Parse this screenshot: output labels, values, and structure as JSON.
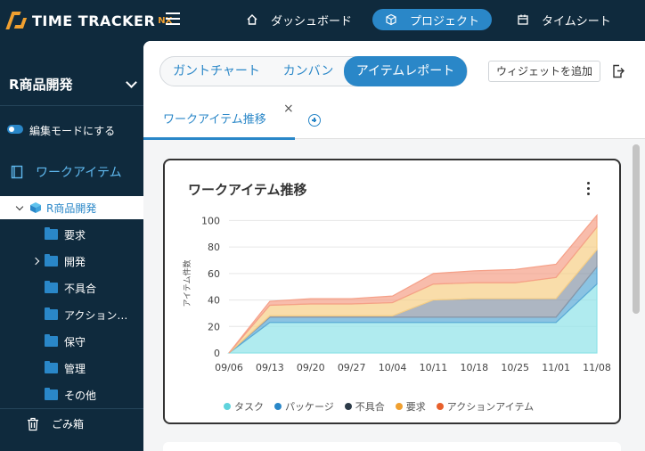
{
  "app": {
    "logo_text": "TIME TRACKER",
    "logo_suffix": "NX"
  },
  "topnav": {
    "items": [
      {
        "label": "ダッシュボード",
        "icon": "home-icon"
      },
      {
        "label": "プロジェクト",
        "icon": "cube-icon",
        "active": true
      },
      {
        "label": "タイムシート",
        "icon": "calendar-icon"
      }
    ]
  },
  "sidebar": {
    "project_name": "R商品開発",
    "edit_mode_label": "編集モードにする",
    "section_label": "ワークアイテム",
    "tree_root": "R商品開発",
    "folders": [
      {
        "label": "要求"
      },
      {
        "label": "開発",
        "expandable": true
      },
      {
        "label": "不具合"
      },
      {
        "label": "アクション…"
      },
      {
        "label": "保守"
      },
      {
        "label": "管理"
      },
      {
        "label": "その他"
      }
    ],
    "trash_label": "ごみ箱"
  },
  "main": {
    "view_tabs": [
      {
        "label": "ガントチャート"
      },
      {
        "label": "カンバン"
      },
      {
        "label": "アイテムレポート",
        "active": true
      }
    ],
    "add_widget_label": "ウィジェットを追加",
    "report_tab": {
      "label": "ワークアイテム推移",
      "close": "×"
    }
  },
  "widget": {
    "title": "ワークアイテム推移"
  },
  "chart_data": {
    "type": "area",
    "stacked": true,
    "title": "",
    "ylabel": "アイテム件数",
    "xlabel": "",
    "ylim": [
      0,
      105
    ],
    "yticks": [
      0,
      20,
      40,
      60,
      80,
      100
    ],
    "x": [
      "09/06",
      "09/13",
      "09/20",
      "09/27",
      "10/04",
      "10/11",
      "10/18",
      "10/25",
      "11/01",
      "11/08"
    ],
    "grid": true,
    "legend_position": "bottom",
    "series": [
      {
        "name": "タスク",
        "color": "#8fe3e8",
        "values": [
          0,
          23,
          23,
          23,
          23,
          23,
          23,
          23,
          23,
          52
        ]
      },
      {
        "name": "パッケージ",
        "color": "#5aa9d6",
        "values": [
          0,
          4,
          4,
          4,
          4,
          4,
          4,
          4,
          4,
          13
        ]
      },
      {
        "name": "不具合",
        "color": "#8a97a8",
        "values": [
          0,
          1,
          1,
          1,
          1,
          13,
          14,
          14,
          14,
          13
        ]
      },
      {
        "name": "要求",
        "color": "#f7cf86",
        "values": [
          0,
          8,
          9,
          9,
          10,
          12,
          12,
          12,
          16,
          17
        ]
      },
      {
        "name": "アクションアイテム",
        "color": "#f5a088",
        "values": [
          0,
          3,
          4,
          4,
          5,
          8,
          9,
          10,
          10,
          9
        ]
      }
    ],
    "legend_colors": [
      "#5fd3dc",
      "#2a87c8",
      "#2d3b48",
      "#f0a030",
      "#e8602c"
    ]
  }
}
